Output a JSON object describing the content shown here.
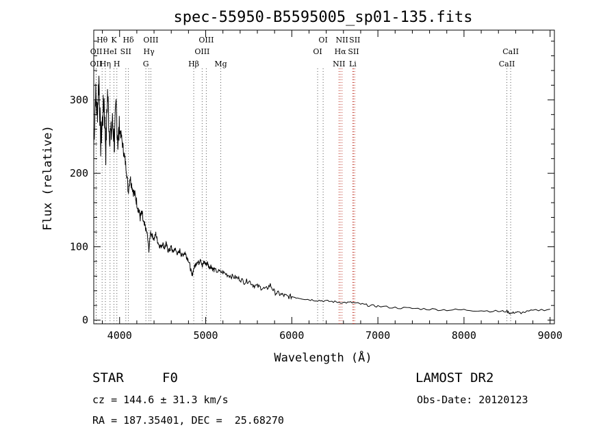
{
  "chart_data": {
    "type": "line",
    "title": "spec-55950-B5595005_sp01-135.fits",
    "xlabel": "Wavelength (Å)",
    "ylabel": "Flux (relative)",
    "xlim": [
      3700,
      9050
    ],
    "ylim": [
      -5,
      395
    ],
    "x_ticks": [
      4000,
      5000,
      6000,
      7000,
      8000,
      9000
    ],
    "y_ticks": [
      0,
      100,
      200,
      300
    ],
    "grid": false,
    "series": [
      {
        "x": [
          3700,
          3720,
          3740,
          3760,
          3780,
          3800,
          3820,
          3840,
          3860,
          3880,
          3900,
          3920,
          3940,
          3960,
          3980,
          4000,
          4020,
          4040,
          4060,
          4080,
          4100,
          4120,
          4140,
          4160,
          4180,
          4200,
          4220,
          4240,
          4260,
          4280,
          4300,
          4320,
          4340,
          4360,
          4380,
          4400,
          4420,
          4440,
          4460,
          4480,
          4500,
          4520,
          4540,
          4560,
          4580,
          4600,
          4620,
          4640,
          4660,
          4680,
          4700,
          4720,
          4740,
          4760,
          4780,
          4800,
          4820,
          4840,
          4860,
          4880,
          4900,
          4920,
          4940,
          4960,
          4980,
          5000,
          5020,
          5040,
          5060,
          5080,
          5100,
          5150,
          5200,
          5250,
          5300,
          5350,
          5400,
          5450,
          5500,
          5550,
          5600,
          5650,
          5700,
          5750,
          5800,
          5850,
          5900,
          5950,
          6000,
          6100,
          6200,
          6300,
          6400,
          6500,
          6600,
          6700,
          6800,
          6900,
          7000,
          7200,
          7400,
          7600,
          7800,
          8000,
          8200,
          8400,
          8500,
          8542,
          8600,
          8662,
          8800,
          9000
        ],
        "y": [
          240,
          310,
          280,
          330,
          240,
          270,
          300,
          230,
          310,
          260,
          250,
          270,
          240,
          290,
          245,
          260,
          250,
          235,
          220,
          205,
          175,
          195,
          185,
          175,
          170,
          160,
          150,
          140,
          145,
          130,
          125,
          118,
          95,
          120,
          115,
          110,
          118,
          108,
          102,
          100,
          105,
          98,
          104,
          96,
          95,
          100,
          92,
          98,
          93,
          90,
          95,
          88,
          90,
          92,
          86,
          82,
          72,
          60,
          70,
          75,
          80,
          78,
          85,
          72,
          80,
          76,
          78,
          72,
          74,
          70,
          68,
          66,
          65,
          62,
          60,
          58,
          56,
          52,
          54,
          48,
          46,
          44,
          42,
          48,
          38,
          36,
          34,
          32,
          32,
          30,
          28,
          27,
          26,
          25,
          24,
          24,
          22,
          20,
          19,
          17,
          16,
          15,
          14,
          14,
          13,
          12,
          12,
          9,
          11,
          10,
          13,
          15
        ]
      }
    ],
    "line_labels": [
      {
        "text": "OII",
        "wl": 3727,
        "row": 3
      },
      {
        "text": "OII",
        "wl": 3729,
        "row": 2
      },
      {
        "text": "Hθ",
        "wl": 3797,
        "row": 1
      },
      {
        "text": "Hη",
        "wl": 3835,
        "row": 3
      },
      {
        "text": "HeI",
        "wl": 3889,
        "row": 2
      },
      {
        "text": "K",
        "wl": 3934,
        "row": 1
      },
      {
        "text": "H",
        "wl": 3968,
        "row": 3
      },
      {
        "text": "SII",
        "wl": 4072,
        "row": 2
      },
      {
        "text": "Hδ",
        "wl": 4102,
        "row": 1
      },
      {
        "text": "G",
        "wl": 4305,
        "row": 3
      },
      {
        "text": "Hγ",
        "wl": 4341,
        "row": 2
      },
      {
        "text": "OIII",
        "wl": 4363,
        "row": 1
      },
      {
        "text": "Hβ",
        "wl": 4861,
        "row": 3
      },
      {
        "text": "OIII",
        "wl": 4959,
        "row": 2
      },
      {
        "text": "OIII",
        "wl": 5007,
        "row": 1
      },
      {
        "text": "Mg",
        "wl": 5175,
        "row": 3
      },
      {
        "text": "OI",
        "wl": 6300,
        "row": 2
      },
      {
        "text": "OI",
        "wl": 6364,
        "row": 1
      },
      {
        "text": "NII",
        "wl": 6548,
        "row": 3
      },
      {
        "text": "Hα",
        "wl": 6563,
        "row": 2
      },
      {
        "text": "NII",
        "wl": 6583,
        "row": 1
      },
      {
        "text": "Li",
        "wl": 6708,
        "row": 3
      },
      {
        "text": "SII",
        "wl": 6717,
        "row": 2
      },
      {
        "text": "SII",
        "wl": 6731,
        "row": 1
      },
      {
        "text": "CaII",
        "wl": 8498,
        "row": 3
      },
      {
        "text": "CaII",
        "wl": 8542,
        "row": 2
      }
    ],
    "line_marks": [
      3727,
      3729,
      3797,
      3835,
      3889,
      3934,
      3968,
      4072,
      4102,
      4305,
      4341,
      4363,
      4861,
      4959,
      5007,
      5175,
      6300,
      6364,
      6548,
      6563,
      6583,
      6708,
      6717,
      6731,
      8498,
      8542
    ]
  },
  "info": {
    "object_type": "STAR",
    "subclass": "F0",
    "survey": "LAMOST DR2",
    "cz": "cz = 144.6 ± 31.3 km/s",
    "obs_date": "Obs-Date: 20120123",
    "coords": "RA = 187.35401, DEC =  25.68270"
  }
}
